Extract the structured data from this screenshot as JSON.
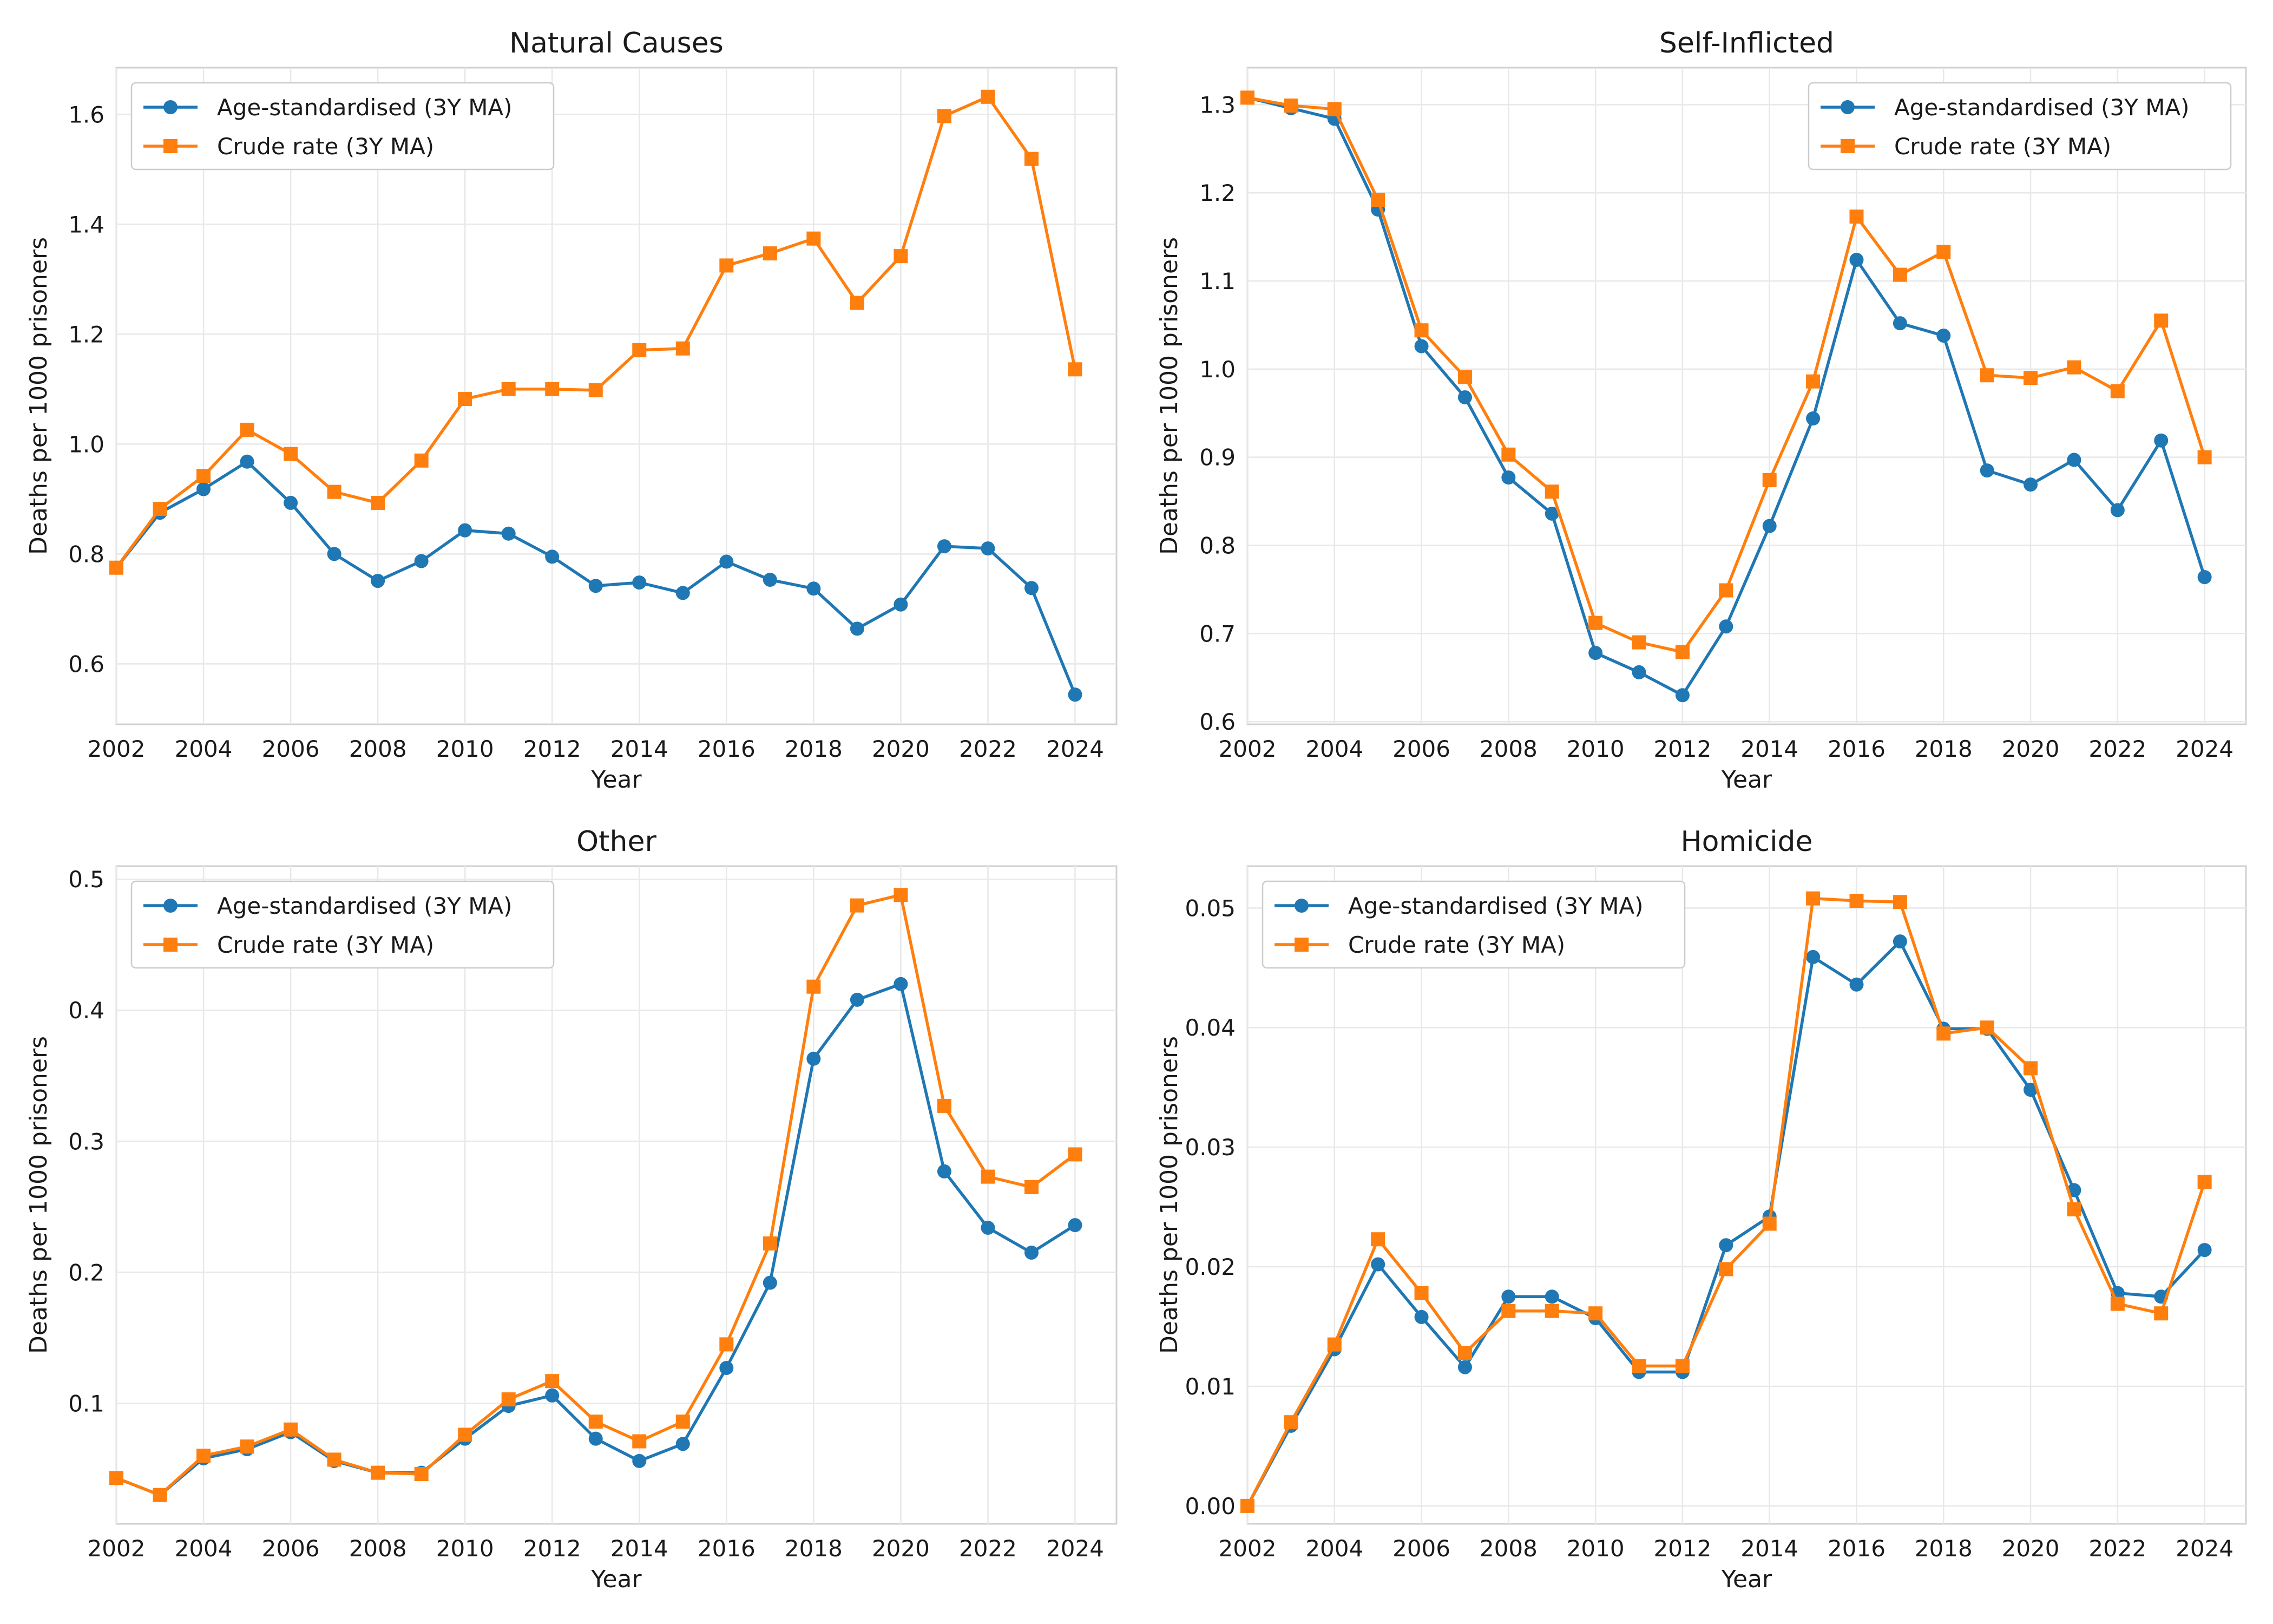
{
  "colors": {
    "age_standardised": "#1f77b4",
    "crude": "#ff7f0e"
  },
  "chart_data": [
    {
      "type": "line",
      "title": "Natural Causes",
      "xlabel": "Year",
      "ylabel": "Deaths per 1000 prisoners",
      "x": [
        2002,
        2003,
        2004,
        2005,
        2006,
        2007,
        2008,
        2009,
        2010,
        2011,
        2012,
        2013,
        2014,
        2015,
        2016,
        2017,
        2018,
        2019,
        2020,
        2021,
        2022,
        2023,
        2024
      ],
      "xticks": [
        "2002",
        "2004",
        "2006",
        "2008",
        "2010",
        "2012",
        "2014",
        "2016",
        "2018",
        "2020",
        "2022",
        "2024"
      ],
      "xlim": [
        2002,
        2024.95
      ],
      "ylim": [
        0.49,
        1.685
      ],
      "yticks": [
        "0.6",
        "0.8",
        "1.0",
        "1.2",
        "1.4",
        "1.6"
      ],
      "grid": true,
      "legend_position": "top-left",
      "series": [
        {
          "name": "Age-standardised (3Y MA)",
          "marker": "circle",
          "values": [
            0.775,
            0.875,
            0.918,
            0.968,
            0.893,
            0.8,
            0.751,
            0.787,
            0.843,
            0.837,
            0.795,
            0.742,
            0.748,
            0.729,
            0.786,
            0.753,
            0.737,
            0.664,
            0.708,
            0.814,
            0.81,
            0.738,
            0.544
          ]
        },
        {
          "name": "Crude rate (3Y MA)",
          "marker": "square",
          "values": [
            0.775,
            0.882,
            0.942,
            1.026,
            0.982,
            0.913,
            0.893,
            0.97,
            1.082,
            1.1,
            1.1,
            1.098,
            1.171,
            1.174,
            1.325,
            1.347,
            1.374,
            1.257,
            1.342,
            1.597,
            1.632,
            1.519,
            1.136
          ]
        }
      ]
    },
    {
      "type": "line",
      "title": "Self-Inflicted",
      "xlabel": "Year",
      "ylabel": "Deaths per 1000 prisoners",
      "x": [
        2002,
        2003,
        2004,
        2005,
        2006,
        2007,
        2008,
        2009,
        2010,
        2011,
        2012,
        2013,
        2014,
        2015,
        2016,
        2017,
        2018,
        2019,
        2020,
        2021,
        2022,
        2023,
        2024
      ],
      "xticks": [
        "2002",
        "2004",
        "2006",
        "2008",
        "2010",
        "2012",
        "2014",
        "2016",
        "2018",
        "2020",
        "2022",
        "2024"
      ],
      "xlim": [
        2002,
        2024.95
      ],
      "ylim": [
        0.597,
        1.342
      ],
      "yticks": [
        "0.6",
        "0.7",
        "0.8",
        "0.9",
        "1.0",
        "1.1",
        "1.2",
        "1.3"
      ],
      "grid": true,
      "legend_position": "top-right",
      "series": [
        {
          "name": "Age-standardised (3Y MA)",
          "marker": "circle",
          "values": [
            1.308,
            1.296,
            1.284,
            1.181,
            1.026,
            0.968,
            0.877,
            0.836,
            0.678,
            0.656,
            0.63,
            0.708,
            0.822,
            0.944,
            1.124,
            1.052,
            1.038,
            0.885,
            0.869,
            0.897,
            0.84,
            0.919,
            0.764
          ]
        },
        {
          "name": "Crude rate (3Y MA)",
          "marker": "square",
          "values": [
            1.308,
            1.299,
            1.295,
            1.192,
            1.044,
            0.991,
            0.903,
            0.861,
            0.712,
            0.69,
            0.679,
            0.749,
            0.874,
            0.986,
            1.173,
            1.107,
            1.133,
            0.993,
            0.99,
            1.002,
            0.975,
            1.055,
            0.9
          ]
        }
      ]
    },
    {
      "type": "line",
      "title": "Other",
      "xlabel": "Year",
      "ylabel": "Deaths per 1000 prisoners",
      "x": [
        2002,
        2003,
        2004,
        2005,
        2006,
        2007,
        2008,
        2009,
        2010,
        2011,
        2012,
        2013,
        2014,
        2015,
        2016,
        2017,
        2018,
        2019,
        2020,
        2021,
        2022,
        2023,
        2024
      ],
      "xticks": [
        "2002",
        "2004",
        "2006",
        "2008",
        "2010",
        "2012",
        "2014",
        "2016",
        "2018",
        "2020",
        "2022",
        "2024"
      ],
      "xlim": [
        2002,
        2024.95
      ],
      "ylim": [
        0.008,
        0.51
      ],
      "yticks": [
        "0.1",
        "0.2",
        "0.3",
        "0.4",
        "0.5"
      ],
      "grid": true,
      "legend_position": "top-left",
      "series": [
        {
          "name": "Age-standardised (3Y MA)",
          "marker": "circle",
          "values": [
            0.043,
            0.03,
            0.058,
            0.065,
            0.078,
            0.056,
            0.047,
            0.047,
            0.073,
            0.098,
            0.106,
            0.073,
            0.056,
            0.069,
            0.127,
            0.192,
            0.363,
            0.408,
            0.42,
            0.277,
            0.234,
            0.215,
            0.236
          ]
        },
        {
          "name": "Crude rate (3Y MA)",
          "marker": "square",
          "values": [
            0.043,
            0.03,
            0.06,
            0.067,
            0.08,
            0.057,
            0.047,
            0.046,
            0.076,
            0.103,
            0.117,
            0.086,
            0.071,
            0.086,
            0.145,
            0.222,
            0.418,
            0.48,
            0.488,
            0.327,
            0.273,
            0.265,
            0.29
          ]
        }
      ]
    },
    {
      "type": "line",
      "title": "Homicide",
      "xlabel": "Year",
      "ylabel": "Deaths per 1000 prisoners",
      "x": [
        2002,
        2003,
        2004,
        2005,
        2006,
        2007,
        2008,
        2009,
        2010,
        2011,
        2012,
        2013,
        2014,
        2015,
        2016,
        2017,
        2018,
        2019,
        2020,
        2021,
        2022,
        2023,
        2024
      ],
      "xticks": [
        "2002",
        "2004",
        "2006",
        "2008",
        "2010",
        "2012",
        "2014",
        "2016",
        "2018",
        "2020",
        "2022",
        "2024"
      ],
      "xlim": [
        2002,
        2024.95
      ],
      "ylim": [
        -0.0015,
        0.0535
      ],
      "yticks": [
        "0.00",
        "0.01",
        "0.02",
        "0.03",
        "0.04",
        "0.05"
      ],
      "grid": true,
      "legend_position": "top-left",
      "series": [
        {
          "name": "Age-standardised (3Y MA)",
          "marker": "circle",
          "values": [
            0.0,
            0.0067,
            0.0131,
            0.0202,
            0.0158,
            0.0116,
            0.0175,
            0.0175,
            0.0157,
            0.0112,
            0.0112,
            0.0218,
            0.0242,
            0.0459,
            0.0436,
            0.0472,
            0.0399,
            0.0399,
            0.0348,
            0.0264,
            0.0178,
            0.0175,
            0.0214
          ]
        },
        {
          "name": "Crude rate (3Y MA)",
          "marker": "square",
          "values": [
            0.0,
            0.007,
            0.0135,
            0.0223,
            0.0178,
            0.0128,
            0.0163,
            0.0163,
            0.0161,
            0.0117,
            0.0117,
            0.0198,
            0.0236,
            0.0508,
            0.0506,
            0.0505,
            0.0395,
            0.04,
            0.0366,
            0.0248,
            0.0169,
            0.0161,
            0.0271
          ]
        }
      ]
    }
  ]
}
